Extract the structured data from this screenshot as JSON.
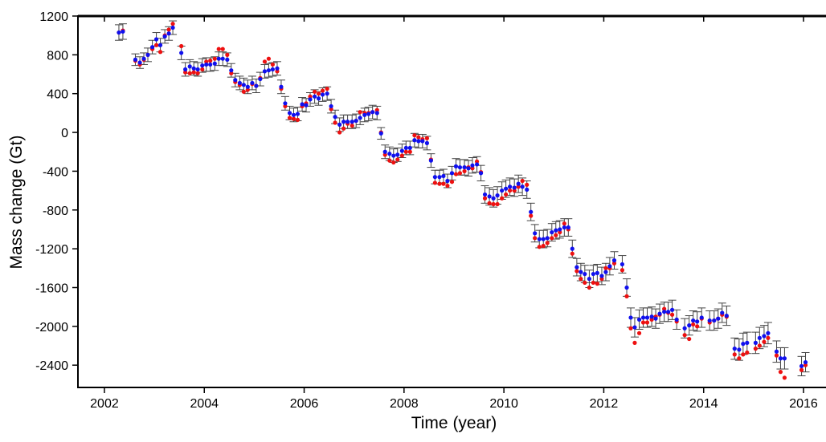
{
  "chart_data": {
    "type": "errorbar-scatter",
    "xlabel": "Time (year)",
    "ylabel": "Mass change (Gt)",
    "xlim": [
      2001.47,
      2016.45
    ],
    "ylim": [
      -2630,
      1200
    ],
    "xticks": [
      2002,
      2004,
      2006,
      2008,
      2010,
      2012,
      2014,
      2016
    ],
    "yticks": [
      1200,
      800,
      400,
      0,
      -400,
      -800,
      -1200,
      -1600,
      -2000,
      -2400
    ],
    "x": [
      2002.29,
      2002.37,
      2002.62,
      2002.71,
      2002.79,
      2002.87,
      2002.96,
      2003.04,
      2003.12,
      2003.21,
      2003.29,
      2003.37,
      2003.54,
      2003.62,
      2003.71,
      2003.79,
      2003.87,
      2003.96,
      2004.04,
      2004.12,
      2004.21,
      2004.29,
      2004.37,
      2004.46,
      2004.54,
      2004.62,
      2004.71,
      2004.79,
      2004.87,
      2004.96,
      2005.04,
      2005.12,
      2005.21,
      2005.29,
      2005.37,
      2005.46,
      2005.54,
      2005.62,
      2005.71,
      2005.79,
      2005.87,
      2005.96,
      2006.04,
      2006.12,
      2006.21,
      2006.29,
      2006.37,
      2006.46,
      2006.54,
      2006.62,
      2006.71,
      2006.79,
      2006.87,
      2006.96,
      2007.04,
      2007.12,
      2007.21,
      2007.29,
      2007.37,
      2007.46,
      2007.54,
      2007.62,
      2007.71,
      2007.79,
      2007.87,
      2007.96,
      2008.04,
      2008.12,
      2008.21,
      2008.29,
      2008.37,
      2008.46,
      2008.54,
      2008.62,
      2008.71,
      2008.79,
      2008.87,
      2008.96,
      2009.04,
      2009.12,
      2009.21,
      2009.29,
      2009.37,
      2009.46,
      2009.54,
      2009.62,
      2009.71,
      2009.79,
      2009.87,
      2009.96,
      2010.04,
      2010.12,
      2010.21,
      2010.29,
      2010.37,
      2010.46,
      2010.54,
      2010.62,
      2010.71,
      2010.79,
      2010.87,
      2010.96,
      2011.04,
      2011.12,
      2011.21,
      2011.29,
      2011.37,
      2011.46,
      2011.54,
      2011.62,
      2011.71,
      2011.79,
      2011.87,
      2011.96,
      2012.04,
      2012.12,
      2012.21,
      2012.37,
      2012.46,
      2012.54,
      2012.62,
      2012.71,
      2012.79,
      2012.87,
      2012.96,
      2013.04,
      2013.12,
      2013.21,
      2013.29,
      2013.37,
      2013.46,
      2013.62,
      2013.71,
      2013.79,
      2013.87,
      2013.96,
      2014.12,
      2014.21,
      2014.29,
      2014.37,
      2014.46,
      2014.62,
      2014.71,
      2014.79,
      2014.87,
      2015.04,
      2015.12,
      2015.21,
      2015.29,
      2015.46,
      2015.54,
      2015.62,
      2015.96,
      2016.04
    ],
    "series": [
      {
        "color": "#1010ee",
        "values": [
          1030,
          1040,
          750,
          720,
          760,
          800,
          880,
          960,
          900,
          990,
          1020,
          1080,
          820,
          650,
          680,
          660,
          650,
          690,
          700,
          700,
          710,
          760,
          760,
          750,
          640,
          540,
          510,
          490,
          470,
          510,
          480,
          550,
          630,
          640,
          650,
          660,
          470,
          300,
          200,
          180,
          190,
          290,
          280,
          340,
          370,
          350,
          390,
          400,
          270,
          160,
          80,
          110,
          110,
          110,
          120,
          150,
          180,
          190,
          210,
          200,
          -10,
          -200,
          -220,
          -240,
          -230,
          -190,
          -160,
          -160,
          -80,
          -90,
          -90,
          -110,
          -290,
          -460,
          -460,
          -450,
          -500,
          -420,
          -350,
          -360,
          -360,
          -370,
          -340,
          -330,
          -420,
          -640,
          -660,
          -680,
          -650,
          -600,
          -580,
          -560,
          -570,
          -530,
          -560,
          -590,
          -820,
          -1040,
          -1100,
          -1100,
          -1090,
          -1030,
          -1010,
          -1000,
          -980,
          -980,
          -1200,
          -1390,
          -1440,
          -1460,
          -1510,
          -1460,
          -1450,
          -1480,
          -1440,
          -1380,
          -1320,
          -1360,
          -1600,
          -1910,
          -2010,
          -1930,
          -1910,
          -1910,
          -1900,
          -1920,
          -1870,
          -1850,
          -1850,
          -1830,
          -1930,
          -2020,
          -1990,
          -1940,
          -1950,
          -1910,
          -1940,
          -1940,
          -1920,
          -1860,
          -1890,
          -2230,
          -2240,
          -2180,
          -2170,
          -2170,
          -2120,
          -2100,
          -2070,
          -2260,
          -2330,
          -2330,
          -2410,
          -2370
        ],
        "errors": [
          80,
          80,
          60,
          60,
          60,
          70,
          70,
          70,
          70,
          70,
          70,
          70,
          70,
          70,
          70,
          70,
          70,
          70,
          70,
          70,
          70,
          70,
          70,
          70,
          70,
          70,
          70,
          70,
          70,
          70,
          70,
          70,
          70,
          70,
          70,
          70,
          70,
          70,
          70,
          70,
          70,
          70,
          70,
          70,
          70,
          70,
          70,
          70,
          70,
          70,
          70,
          70,
          70,
          70,
          70,
          70,
          70,
          70,
          70,
          70,
          60,
          70,
          70,
          70,
          70,
          70,
          70,
          70,
          70,
          70,
          70,
          70,
          70,
          70,
          70,
          70,
          70,
          70,
          80,
          80,
          80,
          80,
          80,
          80,
          80,
          90,
          90,
          90,
          90,
          90,
          90,
          90,
          90,
          90,
          90,
          90,
          90,
          90,
          90,
          90,
          90,
          90,
          90,
          90,
          90,
          90,
          90,
          90,
          90,
          90,
          90,
          90,
          90,
          90,
          90,
          90,
          90,
          90,
          90,
          100,
          100,
          100,
          100,
          100,
          100,
          100,
          100,
          100,
          100,
          100,
          100,
          100,
          100,
          100,
          100,
          100,
          100,
          100,
          100,
          100,
          100,
          110,
          110,
          110,
          110,
          110,
          110,
          110,
          110,
          110,
          110,
          110,
          100,
          100
        ]
      },
      {
        "color": "#ee1010",
        "values": [
          1030,
          1050,
          740,
          700,
          750,
          800,
          860,
          900,
          830,
          1000,
          1060,
          1120,
          890,
          620,
          610,
          620,
          610,
          650,
          730,
          740,
          760,
          860,
          860,
          800,
          610,
          520,
          490,
          420,
          440,
          500,
          480,
          560,
          730,
          760,
          700,
          630,
          450,
          270,
          150,
          140,
          130,
          270,
          300,
          370,
          420,
          400,
          430,
          450,
          240,
          100,
          0,
          40,
          90,
          70,
          120,
          210,
          200,
          200,
          210,
          230,
          0,
          -230,
          -290,
          -310,
          -280,
          -240,
          -200,
          -200,
          -30,
          -50,
          -70,
          -60,
          -280,
          -520,
          -530,
          -530,
          -550,
          -510,
          -430,
          -420,
          -400,
          -360,
          -370,
          -300,
          -410,
          -680,
          -730,
          -740,
          -740,
          -680,
          -640,
          -600,
          -600,
          -560,
          -500,
          -540,
          -860,
          -1090,
          -1180,
          -1170,
          -1140,
          -1090,
          -1060,
          -1030,
          -940,
          -1000,
          -1250,
          -1430,
          -1510,
          -1550,
          -1600,
          -1550,
          -1560,
          -1510,
          -1400,
          -1400,
          -1350,
          -1420,
          -1690,
          -2020,
          -2170,
          -2070,
          -1960,
          -1960,
          -1930,
          -1900,
          -1880,
          -1820,
          -1860,
          -1880,
          -1950,
          -2090,
          -2130,
          -1980,
          -2000,
          -1920,
          -1960,
          -1940,
          -1920,
          -1880,
          -1900,
          -2290,
          -2330,
          -2290,
          -2270,
          -2230,
          -2200,
          -2160,
          -2120,
          -2300,
          -2470,
          -2530,
          -2450,
          -2400
        ]
      }
    ]
  }
}
